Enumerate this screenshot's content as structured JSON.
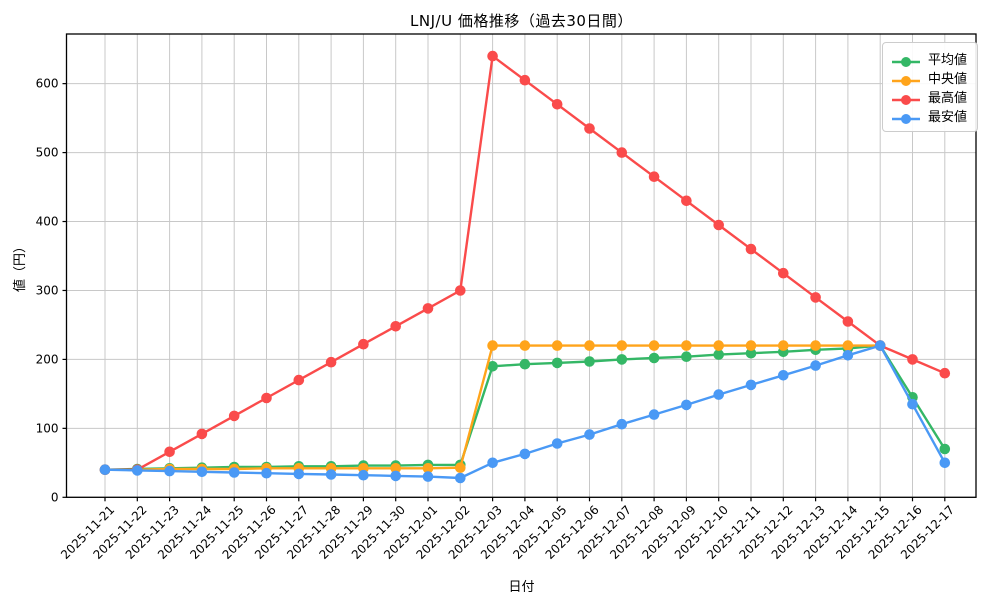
{
  "chart_data": {
    "type": "line",
    "title": "LNJ/U 価格推移（過去30日間）",
    "xlabel": "日付",
    "ylabel": "値（円）",
    "ylim": [
      0,
      672
    ],
    "yticks": [
      0,
      100,
      200,
      300,
      400,
      500,
      600
    ],
    "grid": true,
    "grid_color": "#c8c8c8",
    "legend_position": "upper right",
    "categories": [
      "2025-11-21",
      "2025-11-22",
      "2025-11-23",
      "2025-11-24",
      "2025-11-25",
      "2025-11-26",
      "2025-11-27",
      "2025-11-28",
      "2025-11-29",
      "2025-11-30",
      "2025-12-01",
      "2025-12-02",
      "2025-12-03",
      "2025-12-04",
      "2025-12-05",
      "2025-12-06",
      "2025-12-07",
      "2025-12-08",
      "2025-12-09",
      "2025-12-10",
      "2025-12-11",
      "2025-12-12",
      "2025-12-13",
      "2025-12-14",
      "2025-12-15",
      "2025-12-16",
      "2025-12-17"
    ],
    "series": [
      {
        "key": "avg",
        "name": "平均値",
        "color": "#34b766",
        "values": [
          40,
          41,
          42,
          43,
          44,
          44,
          45,
          45,
          46,
          46,
          47,
          47,
          190,
          193,
          195,
          197,
          200,
          202,
          204,
          207,
          209,
          211,
          214,
          216,
          220,
          145,
          70
        ]
      },
      {
        "key": "median",
        "name": "中央値",
        "color": "#ffa41b",
        "values": [
          40,
          40,
          41,
          41,
          41,
          42,
          42,
          42,
          42,
          42,
          42,
          43,
          220,
          220,
          220,
          220,
          220,
          220,
          220,
          220,
          220,
          220,
          220,
          220,
          220,
          null,
          null
        ]
      },
      {
        "key": "max",
        "name": "最高値",
        "color": "#fa4b4b",
        "values": [
          40,
          40,
          66,
          92,
          118,
          144,
          170,
          196,
          222,
          248,
          274,
          300,
          640,
          605,
          570,
          535,
          500,
          465,
          430,
          395,
          360,
          325,
          290,
          255,
          220,
          200,
          180
        ]
      },
      {
        "key": "min",
        "name": "最安値",
        "color": "#4a99f5",
        "values": [
          40,
          39,
          38,
          37,
          36,
          35,
          34,
          33,
          32,
          31,
          30,
          28,
          50,
          63,
          78,
          91,
          106,
          120,
          134,
          149,
          163,
          177,
          191,
          206,
          220,
          135,
          50
        ]
      }
    ]
  }
}
